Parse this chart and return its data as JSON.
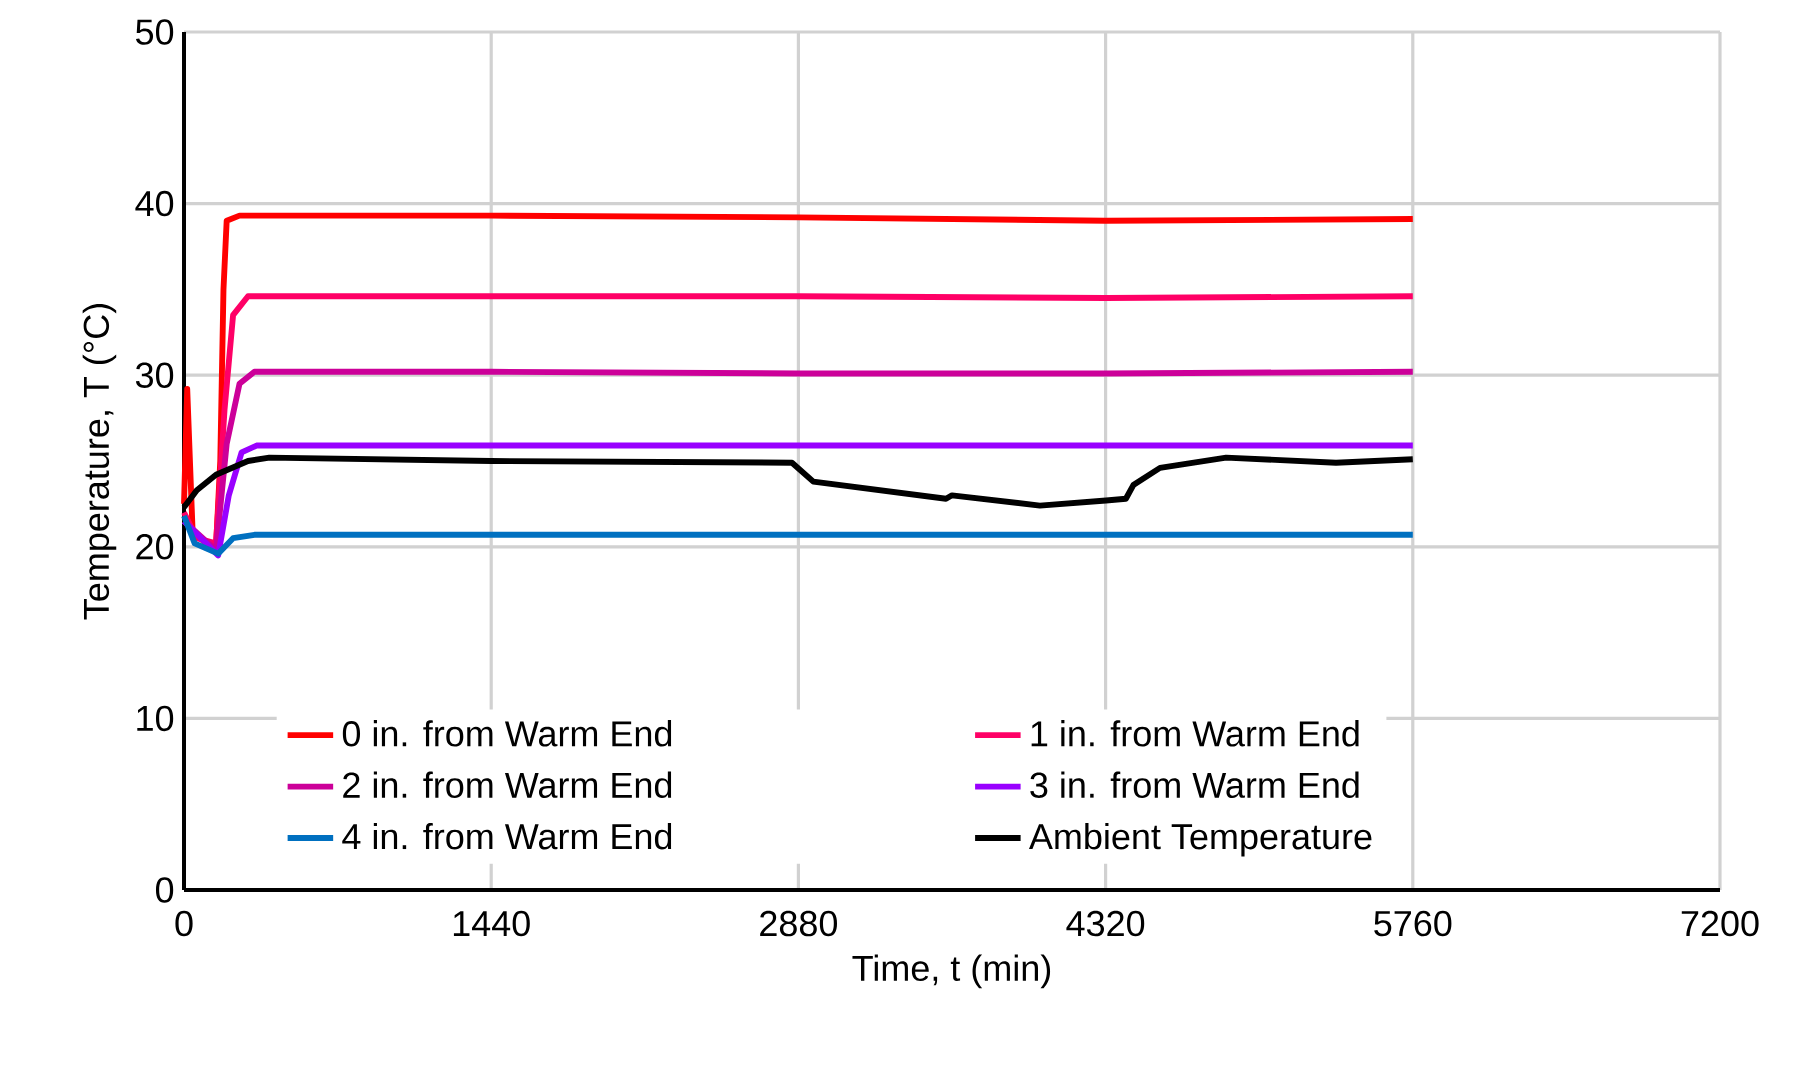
{
  "chart_data": {
    "type": "line",
    "xlabel": "Time, t (min)",
    "ylabel": "Temperature, T (°C)",
    "xlim": [
      0,
      7200
    ],
    "xticks": [
      0,
      1440,
      2880,
      4320,
      5760,
      7200
    ],
    "ylim": [
      0,
      50
    ],
    "yticks": [
      0,
      10,
      20,
      30,
      40,
      50
    ],
    "grid": true,
    "legend": "bottom",
    "marker": "none",
    "line_style": "solid",
    "series": [
      {
        "name": "0 in. from Warm End",
        "color": "#ff0000",
        "x": [
          0,
          15,
          40,
          100,
          150,
          170,
          185,
          200,
          260,
          1440,
          2880,
          4320,
          5760
        ],
        "values": [
          22.5,
          29.2,
          21,
          20.2,
          20.0,
          25,
          35,
          39.0,
          39.3,
          39.3,
          39.2,
          39.0,
          39.1
        ]
      },
      {
        "name": "1 in. from Warm End",
        "color": "#ff0066",
        "x": [
          0,
          60,
          150,
          190,
          230,
          300,
          1440,
          2880,
          4320,
          5760
        ],
        "values": [
          22,
          20.5,
          20.2,
          28,
          33.5,
          34.6,
          34.6,
          34.6,
          34.5,
          34.6
        ]
      },
      {
        "name": "2 in. from Warm End",
        "color": "#cc0099",
        "x": [
          0,
          150,
          200,
          260,
          330,
          1440,
          2880,
          4320,
          5760
        ],
        "values": [
          21.5,
          19.8,
          26,
          29.5,
          30.2,
          30.2,
          30.1,
          30.1,
          30.2
        ]
      },
      {
        "name": "3 in. from Warm End",
        "color": "#9900ff",
        "x": [
          0,
          160,
          210,
          270,
          340,
          1440,
          2880,
          4320,
          5760
        ],
        "values": [
          21.5,
          19.5,
          23,
          25.5,
          25.9,
          25.9,
          25.9,
          25.9,
          25.9
        ]
      },
      {
        "name": "4 in. from Warm End",
        "color": "#0070c0",
        "x": [
          0,
          50,
          160,
          230,
          330,
          1440,
          2880,
          4320,
          5760
        ],
        "values": [
          21.8,
          20.2,
          19.6,
          20.5,
          20.7,
          20.7,
          20.7,
          20.7,
          20.7
        ]
      },
      {
        "name": "Ambient Temperature",
        "color": "#000000",
        "x": [
          0,
          60,
          150,
          300,
          400,
          1440,
          2850,
          2950,
          3572,
          3600,
          4012,
          4322,
          4415,
          4450,
          4575,
          4885,
          5400,
          5760
        ],
        "values": [
          22.3,
          23.3,
          24.2,
          25.0,
          25.2,
          25.0,
          24.9,
          23.8,
          22.8,
          23.0,
          22.4,
          22.7,
          22.8,
          23.6,
          24.6,
          25.2,
          24.9,
          25.1
        ]
      }
    ]
  }
}
